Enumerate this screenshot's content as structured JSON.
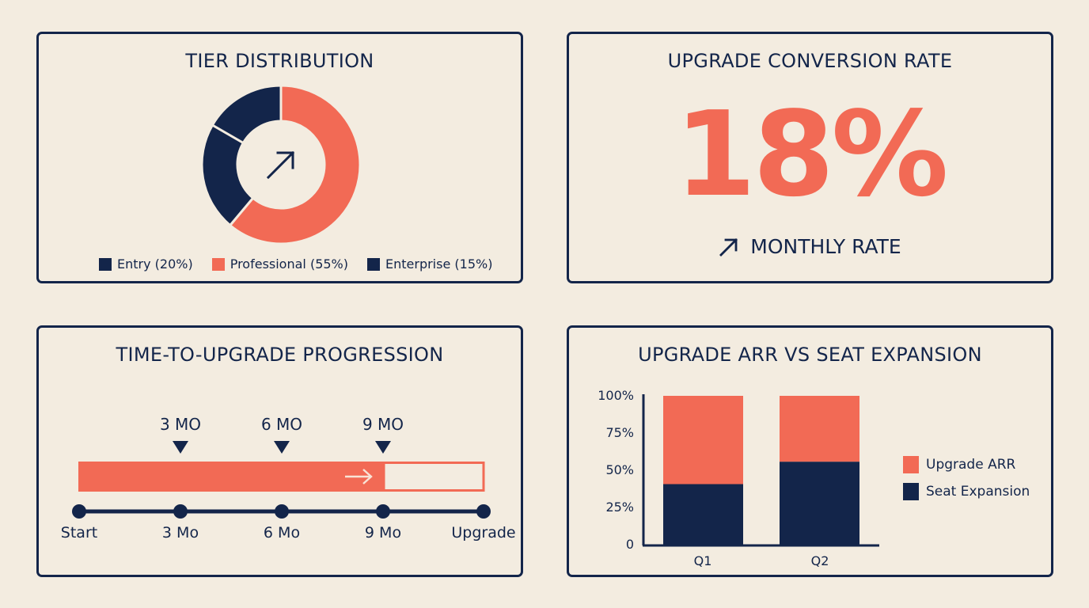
{
  "colors": {
    "navy": "#13254a",
    "coral": "#f26a55",
    "background": "#f3ece0"
  },
  "tier_distribution": {
    "title": "TIER DISTRIBUTION",
    "center_icon": "arrow-up-right-icon",
    "legend": [
      {
        "label": "Entry (20%)",
        "color": "#13254a"
      },
      {
        "label": "Professional (55%)",
        "color": "#f26a55"
      },
      {
        "label": "Enterprise (15%)",
        "color": "#13254a"
      }
    ]
  },
  "conversion": {
    "title": "UPGRADE CONVERSION RATE",
    "value": "18%",
    "icon": "arrow-up-right-icon",
    "caption": "MONTHLY RATE"
  },
  "time_to_upgrade": {
    "title": "TIME-TO-UPGRADE PROGRESSION",
    "markers": [
      "3 MO",
      "6 MO",
      "9 MO"
    ],
    "progress_icon": "arrow-right-icon",
    "progress_fill_pct": 75,
    "steps": [
      "Start",
      "3 Mo",
      "6 Mo",
      "9 Mo",
      "Upgrade"
    ]
  },
  "arr_vs_seat": {
    "title": "UPGRADE ARR VS SEAT EXPANSION",
    "y_ticks": [
      "100%",
      "75%",
      "50%",
      "25%",
      "0"
    ],
    "x_ticks": [
      "Q1",
      "Q2"
    ],
    "legend": [
      {
        "label": "Upgrade ARR",
        "color": "#f26a55"
      },
      {
        "label": "Seat Expansion",
        "color": "#13254a"
      }
    ]
  },
  "chart_data": [
    {
      "type": "pie",
      "title": "TIER DISTRIBUTION",
      "categories": [
        "Professional",
        "Entry",
        "Enterprise"
      ],
      "values": [
        55,
        20,
        15
      ],
      "legend_labels": [
        "Entry (20%)",
        "Professional (55%)",
        "Enterprise (15%)"
      ],
      "donut": true,
      "legend_position": "bottom"
    },
    {
      "type": "table",
      "title": "UPGRADE CONVERSION RATE",
      "value": 18,
      "unit": "%",
      "caption": "MONTHLY RATE"
    },
    {
      "type": "bar",
      "title": "TIME-TO-UPGRADE PROGRESSION",
      "categories": [
        "Start",
        "3 Mo",
        "6 Mo",
        "9 Mo",
        "Upgrade"
      ],
      "markers": [
        "3 MO",
        "6 MO",
        "9 MO"
      ],
      "progress_pct": 75
    },
    {
      "type": "bar",
      "stacked": true,
      "title": "UPGRADE ARR VS SEAT EXPANSION",
      "categories": [
        "Q1",
        "Q2"
      ],
      "series": [
        {
          "name": "Seat Expansion",
          "values": [
            41,
            56
          ]
        },
        {
          "name": "Upgrade ARR",
          "values": [
            59,
            44
          ]
        }
      ],
      "ylabel": "",
      "xlabel": "",
      "ylim": [
        0,
        100
      ],
      "y_ticks": [
        "0",
        "25%",
        "50%",
        "75%",
        "100%"
      ],
      "legend_position": "right",
      "grid": false
    }
  ]
}
